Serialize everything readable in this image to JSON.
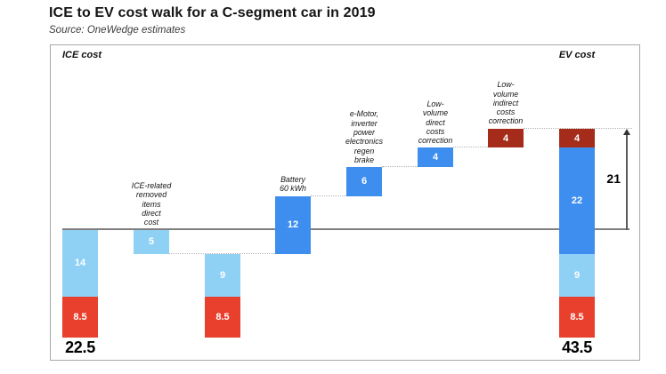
{
  "title": "ICE to EV cost walk for a C-segment car in 2019",
  "source": "Source: OneWedge estimates",
  "chart_data": {
    "type": "bar",
    "variant": "waterfall",
    "left_header": "ICE cost",
    "right_header": "EV cost",
    "totals": {
      "ice": "22.5",
      "ev": "43.5"
    },
    "delta": {
      "label": "21",
      "from_level": 22.5,
      "to_level": 43.5
    },
    "ice_level_line": {
      "level": 22.5
    },
    "colors": {
      "light_blue": "#8FD1F5",
      "blue": "#3E8EEF",
      "red": "#E8402C",
      "dark_red": "#A52C1B",
      "level_line": "#7f7f7f",
      "dashed": "#b4b4b4"
    },
    "bars": [
      {
        "name": "ice-cost",
        "label_lines": [],
        "segments": [
          {
            "from": 8.5,
            "to": 22.5,
            "color": "light_blue",
            "value_label": "14"
          },
          {
            "from": 0,
            "to": 8.5,
            "color": "red",
            "value_label": "8.5"
          }
        ]
      },
      {
        "name": "ice-related-removed-items-direct-cost",
        "label_lines": [
          "ICE-related",
          "removed",
          "items",
          "direct",
          "cost"
        ],
        "segments": [
          {
            "from": 17.5,
            "to": 22.5,
            "color": "light_blue",
            "value_label": "5"
          }
        ]
      },
      {
        "name": "carryover-base",
        "label_lines": [],
        "segments": [
          {
            "from": 8.5,
            "to": 17.5,
            "color": "light_blue",
            "value_label": "9"
          },
          {
            "from": 0,
            "to": 8.5,
            "color": "red",
            "value_label": "8.5"
          }
        ]
      },
      {
        "name": "battery-60-kwh",
        "label_lines": [
          "Battery",
          "60 kWh"
        ],
        "segments": [
          {
            "from": 17.5,
            "to": 29.5,
            "color": "blue",
            "value_label": "12"
          }
        ]
      },
      {
        "name": "emotor-inverter-power-electronics-regen-brake",
        "label_lines": [
          "e-Motor,",
          "inverter",
          "power",
          "electronics",
          "regen",
          "brake"
        ],
        "segments": [
          {
            "from": 29.5,
            "to": 35.5,
            "color": "blue",
            "value_label": "6"
          }
        ]
      },
      {
        "name": "low-volume-direct-costs-correction",
        "label_lines": [
          "Low-",
          "volume",
          "direct",
          "costs",
          "correction"
        ],
        "segments": [
          {
            "from": 35.5,
            "to": 39.5,
            "color": "blue",
            "value_label": "4"
          }
        ]
      },
      {
        "name": "low-volume-indirect-costs-correction",
        "label_lines": [
          "Low-",
          "volume",
          "indirect",
          "costs",
          "correction"
        ],
        "segments": [
          {
            "from": 39.5,
            "to": 43.5,
            "color": "dark_red",
            "value_label": "4"
          }
        ]
      },
      {
        "name": "ev-cost",
        "label_lines": [],
        "segments": [
          {
            "from": 39.5,
            "to": 43.5,
            "color": "dark_red",
            "value_label": "4"
          },
          {
            "from": 17.5,
            "to": 39.5,
            "color": "blue",
            "value_label": "22"
          },
          {
            "from": 8.5,
            "to": 17.5,
            "color": "light_blue",
            "value_label": "9"
          },
          {
            "from": 0,
            "to": 8.5,
            "color": "red",
            "value_label": "8.5"
          }
        ]
      }
    ],
    "connectors": [
      {
        "level": 17.5,
        "from_bar": 1,
        "to_bar": 3
      },
      {
        "level": 29.5,
        "from_bar": 3,
        "to_bar": 4
      },
      {
        "level": 35.5,
        "from_bar": 4,
        "to_bar": 5
      },
      {
        "level": 39.5,
        "from_bar": 5,
        "to_bar": 6
      },
      {
        "level": 43.5,
        "from_bar": 6,
        "to_bar": 7,
        "extend_to_arrow": true
      }
    ]
  }
}
